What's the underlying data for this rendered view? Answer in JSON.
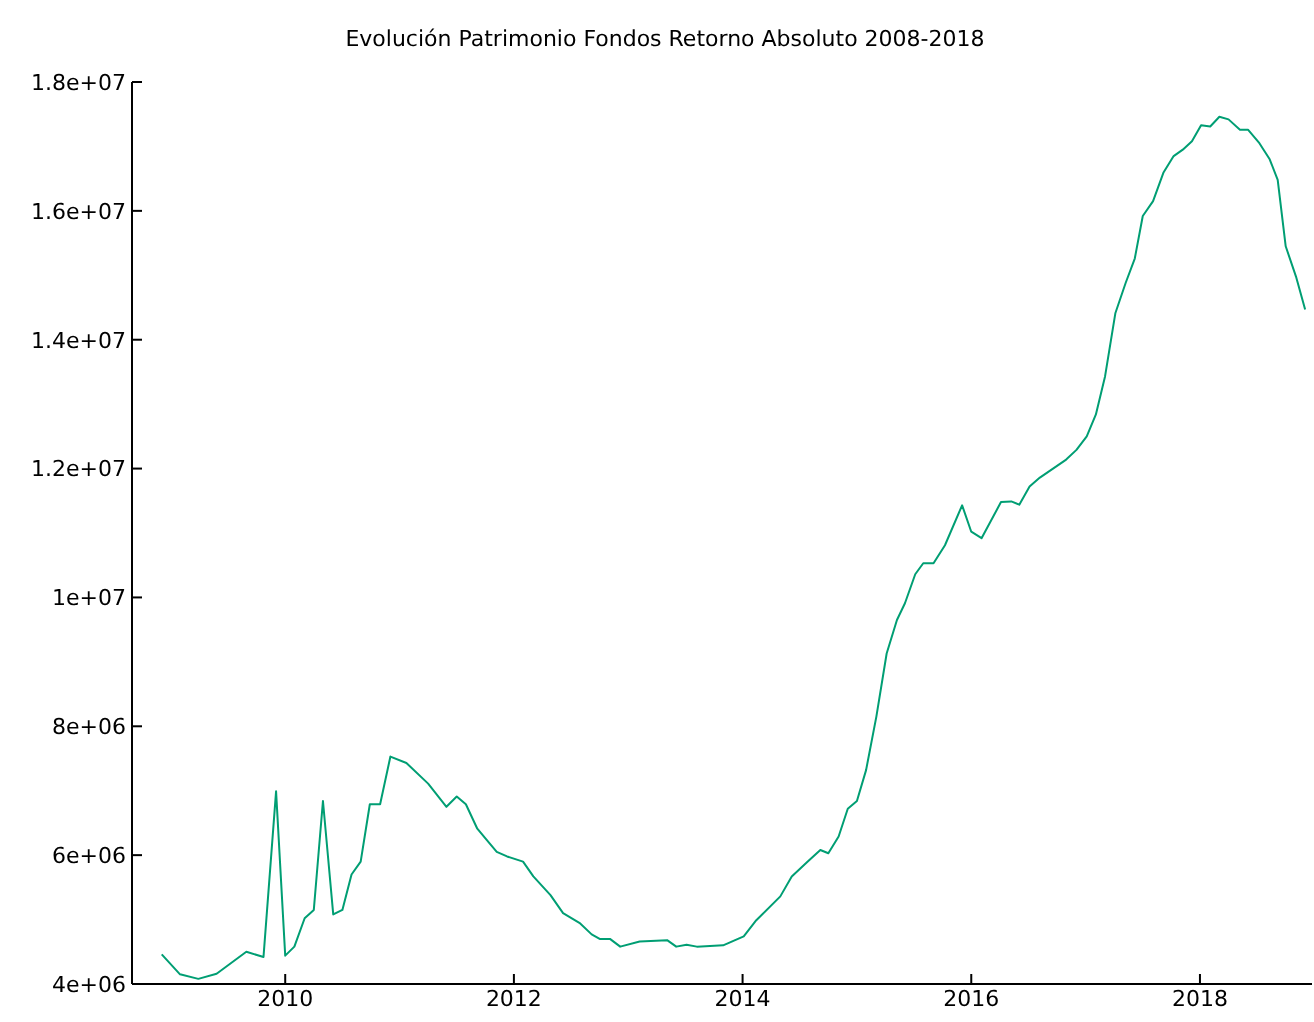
{
  "chart_data": {
    "type": "line",
    "title": "Evolución Patrimonio Fondos Retorno Absoluto 2008-2018",
    "x": [
      2008.92,
      2009.08,
      2009.24,
      2009.4,
      2009.66,
      2009.81,
      2009.92,
      2010.0,
      2010.08,
      2010.17,
      2010.25,
      2010.33,
      2010.42,
      2010.5,
      2010.58,
      2010.66,
      2010.74,
      2010.83,
      2010.92,
      2011.06,
      2011.25,
      2011.41,
      2011.5,
      2011.58,
      2011.68,
      2011.76,
      2011.85,
      2011.94,
      2012.08,
      2012.17,
      2012.32,
      2012.43,
      2012.58,
      2012.68,
      2012.75,
      2012.84,
      2012.93,
      2013.1,
      2013.34,
      2013.42,
      2013.51,
      2013.6,
      2013.83,
      2014.01,
      2014.12,
      2014.33,
      2014.43,
      2014.57,
      2014.68,
      2014.75,
      2014.84,
      2014.92,
      2015.0,
      2015.08,
      2015.17,
      2015.26,
      2015.35,
      2015.42,
      2015.51,
      2015.58,
      2015.67,
      2015.77,
      2015.92,
      2016.0,
      2016.09,
      2016.26,
      2016.35,
      2016.42,
      2016.51,
      2016.6,
      2016.83,
      2016.92,
      2017.01,
      2017.09,
      2017.17,
      2017.26,
      2017.35,
      2017.43,
      2017.5,
      2017.59,
      2017.68,
      2017.77,
      2017.85,
      2017.93,
      2018.01,
      2018.09,
      2018.17,
      2018.25,
      2018.35,
      2018.42,
      2018.52,
      2018.61,
      2018.68,
      2018.75,
      2018.84,
      2018.92
    ],
    "series": [
      {
        "color": "#009e73",
        "values": [
          4460000,
          4150000,
          4080000,
          4160000,
          4500000,
          4420000,
          6990000,
          4440000,
          4580000,
          5020000,
          5150000,
          6840000,
          5080000,
          5150000,
          5700000,
          5900000,
          6790000,
          6790000,
          7530000,
          7430000,
          7110000,
          6750000,
          6910000,
          6790000,
          6410000,
          6240000,
          6050000,
          5980000,
          5900000,
          5670000,
          5380000,
          5100000,
          4940000,
          4770000,
          4700000,
          4700000,
          4580000,
          4660000,
          4680000,
          4580000,
          4610000,
          4580000,
          4600000,
          4740000,
          4990000,
          5360000,
          5670000,
          5900000,
          6080000,
          6030000,
          6290000,
          6720000,
          6840000,
          7320000,
          8150000,
          9130000,
          9650000,
          9910000,
          10360000,
          10530000,
          10530000,
          10810000,
          11430000,
          11020000,
          10920000,
          11480000,
          11490000,
          11440000,
          11720000,
          11860000,
          12140000,
          12290000,
          12500000,
          12840000,
          13430000,
          14410000,
          14880000,
          15260000,
          15920000,
          16150000,
          16590000,
          16850000,
          16950000,
          17080000,
          17330000,
          17310000,
          17460000,
          17420000,
          17260000,
          17260000,
          17050000,
          16800000,
          16480000,
          15450000,
          14980000,
          14470000
        ]
      }
    ],
    "xlim": [
      2008.66,
      2018.98
    ],
    "xticks": [
      2010,
      2012,
      2014,
      2016,
      2018
    ],
    "ylim": [
      4000000,
      18000000
    ],
    "yticks": [
      {
        "value": 4000000,
        "label": "4e+06"
      },
      {
        "value": 6000000,
        "label": "6e+06"
      },
      {
        "value": 8000000,
        "label": "8e+06"
      },
      {
        "value": 10000000,
        "label": "1e+07"
      },
      {
        "value": 12000000,
        "label": "1.2e+07"
      },
      {
        "value": 14000000,
        "label": "1.4e+07"
      },
      {
        "value": 16000000,
        "label": "1.6e+07"
      },
      {
        "value": 18000000,
        "label": "1.8e+07"
      }
    ],
    "grid": false,
    "legend": false,
    "marker": "none",
    "line_style": "solid"
  }
}
